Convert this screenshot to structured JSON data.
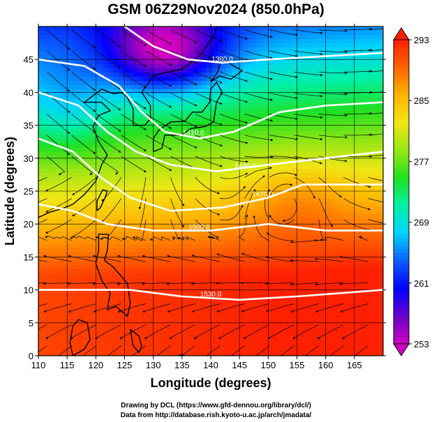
{
  "title": "GSM 06Z29Nov2024 (850.0hPa)",
  "map": {
    "x_axis": {
      "label": "Longitude (degrees)",
      "min": 110,
      "max": 170,
      "ticks": [
        110,
        115,
        120,
        125,
        130,
        135,
        140,
        145,
        150,
        155,
        160,
        165
      ]
    },
    "y_axis": {
      "label": "Latitude  (degrees)",
      "min": 0,
      "max": 50,
      "ticks": [
        0,
        5,
        10,
        15,
        20,
        25,
        30,
        35,
        40,
        45
      ]
    },
    "grid": true,
    "variable": "temperature",
    "contour_labels": [
      "1380.0",
      "1410.0",
      "1440.0",
      "1470.0",
      "1500.0",
      "1530.0"
    ],
    "overlays": [
      "streamlines",
      "geopotential-height-contours",
      "coastlines"
    ]
  },
  "colorbar": {
    "min": 253,
    "max": 293,
    "tick_values": [
      253,
      261,
      269,
      277,
      285,
      293
    ],
    "palette": [
      "#d000c0",
      "#6a00c8",
      "#0000ff",
      "#0a5cff",
      "#00d2ff",
      "#00f0a8",
      "#20e020",
      "#96e614",
      "#f0e614",
      "#ffb400",
      "#ff6400",
      "#ff2000"
    ]
  },
  "footer": {
    "drawing_credit": "Drawing by DCL (https://www.gfd-dennou.org/library/dcl/)",
    "data_credit": "Data from http://database.rish.kyoto-u.ac.jp/arch/jmadata/"
  }
}
